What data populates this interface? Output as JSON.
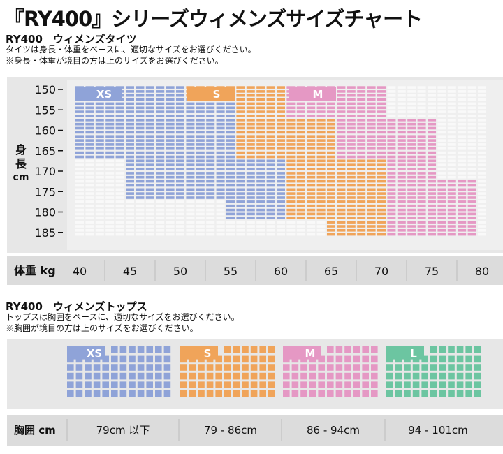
{
  "page": {
    "title": "『RY400』シリーズウィメンズサイズチャート",
    "colors": {
      "xs": "#8fa3d8",
      "s": "#f0a45a",
      "m": "#e598c4",
      "l": "#6cc5a1",
      "empty": "#f2f2f2",
      "panel": "#e7e7e7",
      "axis_bar": "#dcdcdc"
    }
  },
  "tights": {
    "title": "RY400　ウィメンズタイツ",
    "note1": "タイツは身長・体重をベースに、適切なサイズをお選びください。",
    "note2": "※身長・体重が境目の方は上のサイズをお選びください。",
    "chart_data": {
      "type": "heatmap",
      "title": "RY400　ウィメンズタイツ",
      "xlabel": "体重 kg",
      "ylabel": "身長 cm",
      "x_ticks": [
        40,
        45,
        50,
        55,
        60,
        65,
        70,
        75,
        80
      ],
      "y_ticks": [
        150,
        155,
        160,
        165,
        170,
        175,
        180,
        185
      ],
      "xlim": [
        40,
        80
      ],
      "ylim": [
        150,
        185
      ],
      "legend": [
        "XS",
        "S",
        "M"
      ],
      "size_rows": [
        {
          "height": 150,
          "ranges": [
            {
              "size": "XS",
              "from": 40,
              "to": 50.5
            },
            {
              "size": "S",
              "from": 50.5,
              "to": 60.5
            },
            {
              "size": "M",
              "from": 60.5,
              "to": 70.5
            }
          ]
        },
        {
          "height": 155,
          "ranges": [
            {
              "size": "XS",
              "from": 40,
              "to": 55.5
            },
            {
              "size": "S",
              "from": 55.5,
              "to": 60.5
            },
            {
              "size": "M",
              "from": 60.5,
              "to": 70.5
            }
          ]
        },
        {
          "height": 160,
          "ranges": [
            {
              "size": "XS",
              "from": 40,
              "to": 55.5
            },
            {
              "size": "S",
              "from": 55.5,
              "to": 65.5
            },
            {
              "size": "M",
              "from": 65.5,
              "to": 75.5
            }
          ]
        },
        {
          "height": 165,
          "ranges": [
            {
              "size": "XS",
              "from": 40,
              "to": 55.5
            },
            {
              "size": "S",
              "from": 55.5,
              "to": 65.5
            },
            {
              "size": "M",
              "from": 65.5,
              "to": 75.5
            }
          ]
        },
        {
          "height": 170,
          "ranges": [
            {
              "size": "XS",
              "from": 45,
              "to": 60.5
            },
            {
              "size": "S",
              "from": 60.5,
              "to": 70.5
            },
            {
              "size": "M",
              "from": 70.5,
              "to": 75.5
            }
          ]
        },
        {
          "height": 175,
          "ranges": [
            {
              "size": "XS",
              "from": 45,
              "to": 60.5
            },
            {
              "size": "S",
              "from": 60.5,
              "to": 70.5
            },
            {
              "size": "M",
              "from": 70.5,
              "to": 80
            }
          ]
        },
        {
          "height": 180,
          "ranges": [
            {
              "size": "XS",
              "from": 55,
              "to": 60.5
            },
            {
              "size": "S",
              "from": 60.5,
              "to": 70.5
            },
            {
              "size": "M",
              "from": 70.5,
              "to": 80
            }
          ]
        },
        {
          "height": 185,
          "ranges": [
            {
              "size": "S",
              "from": 65,
              "to": 70.5
            },
            {
              "size": "M",
              "from": 70.5,
              "to": 80
            }
          ]
        }
      ]
    }
  },
  "tops": {
    "title": "RY400　ウィメンズトップス",
    "note1": "トップスは胸囲をベースに、適切なサイズをお選びください。",
    "note2": "※胸囲が境目の方は上のサイズをお選びください。",
    "chart_data": {
      "type": "table",
      "title": "RY400　ウィメンズトップス",
      "xlabel": "胸囲 cm",
      "categories": [
        "XS",
        "S",
        "M",
        "L"
      ],
      "ranges": [
        "79cm 以下",
        "79 - 86cm",
        "86 - 94cm",
        "94 - 101cm"
      ]
    }
  }
}
